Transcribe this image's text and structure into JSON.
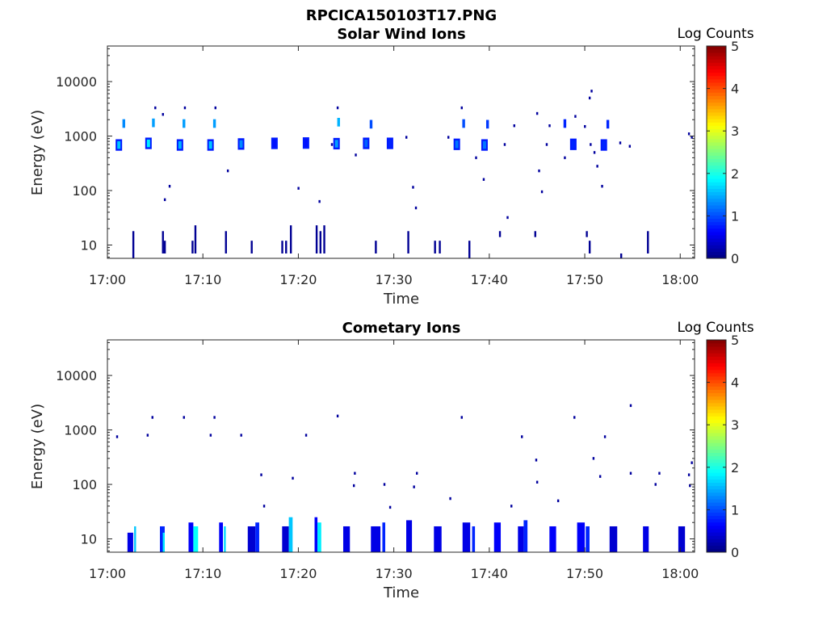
{
  "figure": {
    "title": "RPCICA150103T17.PNG"
  },
  "chart_data": [
    {
      "type": "heatmap",
      "title": "Solar Wind Ions",
      "xlabel": "Time",
      "ylabel": "Energy (eV)",
      "x_ticks": [
        "17:00",
        "17:10",
        "17:20",
        "17:30",
        "17:40",
        "17:50",
        "18:00"
      ],
      "x_range_minutes": [
        0,
        61.5
      ],
      "y_scale": "log",
      "y_range": [
        5.7,
        45000
      ],
      "y_ticks": [
        10,
        100,
        1000,
        10000
      ],
      "y_tick_labels": [
        "10",
        "100",
        "1000",
        "10000"
      ],
      "colorbar": {
        "label": "Log Counts",
        "range": [
          0,
          5
        ],
        "ticks": [
          "0",
          "1",
          "2",
          "3",
          "4",
          "5"
        ],
        "colormap": "jet"
      },
      "clusters": [
        {
          "t": 1.2,
          "e": 700,
          "c": 1.6
        },
        {
          "t": 4.3,
          "e": 750,
          "c": 1.8
        },
        {
          "t": 7.6,
          "e": 700,
          "c": 1.5
        },
        {
          "t": 10.8,
          "e": 700,
          "c": 1.6
        },
        {
          "t": 14.0,
          "e": 730,
          "c": 1.3
        },
        {
          "t": 17.5,
          "e": 750,
          "c": 0.7
        },
        {
          "t": 20.8,
          "e": 760,
          "c": 0.7
        },
        {
          "t": 24.0,
          "e": 740,
          "c": 1.4
        },
        {
          "t": 27.1,
          "e": 750,
          "c": 1.1
        },
        {
          "t": 29.6,
          "e": 750,
          "c": 0.8
        },
        {
          "t": 36.6,
          "e": 720,
          "c": 1.2
        },
        {
          "t": 39.5,
          "e": 700,
          "c": 1.2
        },
        {
          "t": 48.8,
          "e": 720,
          "c": 0.8
        },
        {
          "t": 52.0,
          "e": 700,
          "c": 0.8
        }
      ],
      "upper_clusters": [
        {
          "t": 1.7,
          "e": 1700,
          "c": 1.3
        },
        {
          "t": 4.8,
          "e": 1750,
          "c": 1.4
        },
        {
          "t": 8.0,
          "e": 1700,
          "c": 1.4
        },
        {
          "t": 11.2,
          "e": 1700,
          "c": 1.4
        },
        {
          "t": 24.2,
          "e": 1800,
          "c": 1.5
        },
        {
          "t": 27.6,
          "e": 1650,
          "c": 1.0
        },
        {
          "t": 37.3,
          "e": 1700,
          "c": 1.0
        },
        {
          "t": 39.8,
          "e": 1650,
          "c": 0.9
        },
        {
          "t": 47.9,
          "e": 1700,
          "c": 0.8
        },
        {
          "t": 52.4,
          "e": 1650,
          "c": 0.8
        }
      ],
      "sparse_points": [
        {
          "t": 5.0,
          "e": 3300
        },
        {
          "t": 5.8,
          "e": 2500
        },
        {
          "t": 8.1,
          "e": 3300
        },
        {
          "t": 11.3,
          "e": 3300
        },
        {
          "t": 24.1,
          "e": 3300
        },
        {
          "t": 37.1,
          "e": 3300
        },
        {
          "t": 45.0,
          "e": 2600
        },
        {
          "t": 50.7,
          "e": 6700
        },
        {
          "t": 50.5,
          "e": 5000
        },
        {
          "t": 49.0,
          "e": 2300
        },
        {
          "t": 42.6,
          "e": 1550
        },
        {
          "t": 46.3,
          "e": 1550
        },
        {
          "t": 50.0,
          "e": 1500
        },
        {
          "t": 12.6,
          "e": 230
        },
        {
          "t": 20.0,
          "e": 110
        },
        {
          "t": 22.2,
          "e": 63
        },
        {
          "t": 6.5,
          "e": 120
        },
        {
          "t": 6.0,
          "e": 68
        },
        {
          "t": 32.0,
          "e": 115
        },
        {
          "t": 32.3,
          "e": 48
        },
        {
          "t": 39.4,
          "e": 160
        },
        {
          "t": 45.2,
          "e": 230
        },
        {
          "t": 45.5,
          "e": 95
        },
        {
          "t": 51.8,
          "e": 120
        },
        {
          "t": 51.3,
          "e": 280
        },
        {
          "t": 41.9,
          "e": 32
        },
        {
          "t": 26.0,
          "e": 450
        },
        {
          "t": 38.6,
          "e": 400
        },
        {
          "t": 47.9,
          "e": 400
        },
        {
          "t": 51.0,
          "e": 500
        },
        {
          "t": 54.7,
          "e": 650
        },
        {
          "t": 60.9,
          "e": 1100
        },
        {
          "t": 61.2,
          "e": 950
        },
        {
          "t": 23.5,
          "e": 700
        },
        {
          "t": 31.3,
          "e": 950
        },
        {
          "t": 35.7,
          "e": 950
        },
        {
          "t": 41.6,
          "e": 700
        },
        {
          "t": 46.0,
          "e": 700
        },
        {
          "t": 50.6,
          "e": 700
        },
        {
          "t": 53.7,
          "e": 750
        }
      ],
      "low_streaks": [
        {
          "t": 2.7,
          "lo": 5.7,
          "hi": 18
        },
        {
          "t": 5.8,
          "lo": 7,
          "hi": 18
        },
        {
          "t": 6.0,
          "lo": 7,
          "hi": 12
        },
        {
          "t": 8.9,
          "lo": 7,
          "hi": 12
        },
        {
          "t": 9.2,
          "lo": 7,
          "hi": 23
        },
        {
          "t": 12.4,
          "lo": 7,
          "hi": 18
        },
        {
          "t": 15.1,
          "lo": 7,
          "hi": 12
        },
        {
          "t": 18.3,
          "lo": 7,
          "hi": 12
        },
        {
          "t": 18.7,
          "lo": 7,
          "hi": 12
        },
        {
          "t": 19.2,
          "lo": 7,
          "hi": 23
        },
        {
          "t": 21.9,
          "lo": 7,
          "hi": 23
        },
        {
          "t": 22.3,
          "lo": 7,
          "hi": 18
        },
        {
          "t": 22.7,
          "lo": 7,
          "hi": 23
        },
        {
          "t": 28.1,
          "lo": 7,
          "hi": 12
        },
        {
          "t": 31.5,
          "lo": 7,
          "hi": 18
        },
        {
          "t": 34.3,
          "lo": 7,
          "hi": 12
        },
        {
          "t": 34.8,
          "lo": 7,
          "hi": 12
        },
        {
          "t": 37.9,
          "lo": 5.7,
          "hi": 12
        },
        {
          "t": 41.1,
          "lo": 14,
          "hi": 18
        },
        {
          "t": 44.8,
          "lo": 14,
          "hi": 18
        },
        {
          "t": 50.2,
          "lo": 14,
          "hi": 18
        },
        {
          "t": 50.5,
          "lo": 7,
          "hi": 12
        },
        {
          "t": 53.8,
          "lo": 5.7,
          "hi": 7
        },
        {
          "t": 56.6,
          "lo": 7,
          "hi": 18
        }
      ]
    },
    {
      "type": "heatmap",
      "title": "Cometary Ions",
      "xlabel": "Time",
      "ylabel": "Energy (eV)",
      "x_ticks": [
        "17:00",
        "17:10",
        "17:20",
        "17:30",
        "17:40",
        "17:50",
        "18:00"
      ],
      "x_range_minutes": [
        0,
        61.5
      ],
      "y_scale": "log",
      "y_range": [
        5.7,
        45000
      ],
      "y_ticks": [
        10,
        100,
        1000,
        10000
      ],
      "y_tick_labels": [
        "10",
        "100",
        "1000",
        "10000"
      ],
      "colorbar": {
        "label": "Log Counts",
        "range": [
          0,
          5
        ],
        "ticks": [
          "0",
          "1",
          "2",
          "3",
          "4",
          "5"
        ],
        "colormap": "jet"
      },
      "low_blocks": [
        {
          "t0": 2.1,
          "t1": 2.7,
          "hi": 13,
          "c": 0.5
        },
        {
          "t0": 2.8,
          "t1": 3.0,
          "hi": 17,
          "c": 1.6
        },
        {
          "t0": 5.5,
          "t1": 6.0,
          "hi": 17,
          "c": 0.8
        },
        {
          "t0": 5.8,
          "t1": 6.0,
          "hi": 13,
          "c": 1.8
        },
        {
          "t0": 8.5,
          "t1": 9.0,
          "hi": 20,
          "c": 0.6
        },
        {
          "t0": 9.0,
          "t1": 9.5,
          "hi": 17,
          "c": 1.9
        },
        {
          "t0": 11.7,
          "t1": 12.1,
          "hi": 20,
          "c": 0.6
        },
        {
          "t0": 12.2,
          "t1": 12.4,
          "hi": 17,
          "c": 1.7
        },
        {
          "t0": 14.7,
          "t1": 15.5,
          "hi": 17,
          "c": 0.4
        },
        {
          "t0": 15.5,
          "t1": 15.9,
          "hi": 20,
          "c": 0.8
        },
        {
          "t0": 18.3,
          "t1": 19.0,
          "hi": 17,
          "c": 0.4
        },
        {
          "t0": 19.0,
          "t1": 19.4,
          "hi": 25,
          "c": 1.6
        },
        {
          "t0": 21.7,
          "t1": 22.0,
          "hi": 25,
          "c": 0.6
        },
        {
          "t0": 22.0,
          "t1": 22.4,
          "hi": 20,
          "c": 1.8
        },
        {
          "t0": 24.7,
          "t1": 25.4,
          "hi": 17,
          "c": 0.5
        },
        {
          "t0": 27.6,
          "t1": 28.6,
          "hi": 17,
          "c": 0.5
        },
        {
          "t0": 28.8,
          "t1": 29.1,
          "hi": 20,
          "c": 0.8
        },
        {
          "t0": 31.3,
          "t1": 31.9,
          "hi": 22,
          "c": 0.5
        },
        {
          "t0": 34.2,
          "t1": 35.0,
          "hi": 17,
          "c": 0.5
        },
        {
          "t0": 37.2,
          "t1": 38.0,
          "hi": 20,
          "c": 0.5
        },
        {
          "t0": 38.2,
          "t1": 38.5,
          "hi": 17,
          "c": 0.8
        },
        {
          "t0": 40.5,
          "t1": 41.2,
          "hi": 20,
          "c": 0.6
        },
        {
          "t0": 43.0,
          "t1": 43.6,
          "hi": 17,
          "c": 0.5
        },
        {
          "t0": 43.6,
          "t1": 44.0,
          "hi": 22,
          "c": 0.8
        },
        {
          "t0": 46.3,
          "t1": 47.0,
          "hi": 17,
          "c": 0.6
        },
        {
          "t0": 49.2,
          "t1": 50.0,
          "hi": 20,
          "c": 0.6
        },
        {
          "t0": 50.1,
          "t1": 50.5,
          "hi": 17,
          "c": 0.8
        },
        {
          "t0": 52.6,
          "t1": 53.4,
          "hi": 17,
          "c": 0.4
        },
        {
          "t0": 56.1,
          "t1": 56.7,
          "hi": 17,
          "c": 0.5
        },
        {
          "t0": 59.8,
          "t1": 60.5,
          "hi": 17,
          "c": 0.4
        }
      ],
      "sparse_points": [
        {
          "t": 1.0,
          "e": 750
        },
        {
          "t": 4.2,
          "e": 800
        },
        {
          "t": 4.7,
          "e": 1700
        },
        {
          "t": 8.0,
          "e": 1700
        },
        {
          "t": 10.8,
          "e": 800
        },
        {
          "t": 11.2,
          "e": 1700
        },
        {
          "t": 14.0,
          "e": 800
        },
        {
          "t": 16.1,
          "e": 150
        },
        {
          "t": 16.4,
          "e": 40
        },
        {
          "t": 19.4,
          "e": 130
        },
        {
          "t": 20.8,
          "e": 800
        },
        {
          "t": 24.1,
          "e": 1800
        },
        {
          "t": 25.8,
          "e": 95
        },
        {
          "t": 25.9,
          "e": 160
        },
        {
          "t": 29.0,
          "e": 100
        },
        {
          "t": 29.6,
          "e": 38
        },
        {
          "t": 32.1,
          "e": 90
        },
        {
          "t": 32.4,
          "e": 160
        },
        {
          "t": 35.9,
          "e": 55
        },
        {
          "t": 37.1,
          "e": 1700
        },
        {
          "t": 42.3,
          "e": 40
        },
        {
          "t": 43.4,
          "e": 750
        },
        {
          "t": 45.0,
          "e": 110
        },
        {
          "t": 44.9,
          "e": 280
        },
        {
          "t": 47.2,
          "e": 50
        },
        {
          "t": 48.9,
          "e": 1700
        },
        {
          "t": 50.9,
          "e": 300
        },
        {
          "t": 51.6,
          "e": 140
        },
        {
          "t": 52.1,
          "e": 750
        },
        {
          "t": 54.8,
          "e": 2800
        },
        {
          "t": 54.8,
          "e": 160
        },
        {
          "t": 57.4,
          "e": 100
        },
        {
          "t": 57.8,
          "e": 160
        },
        {
          "t": 60.9,
          "e": 150
        },
        {
          "t": 61.2,
          "e": 250
        },
        {
          "t": 61.0,
          "e": 95
        }
      ]
    }
  ]
}
